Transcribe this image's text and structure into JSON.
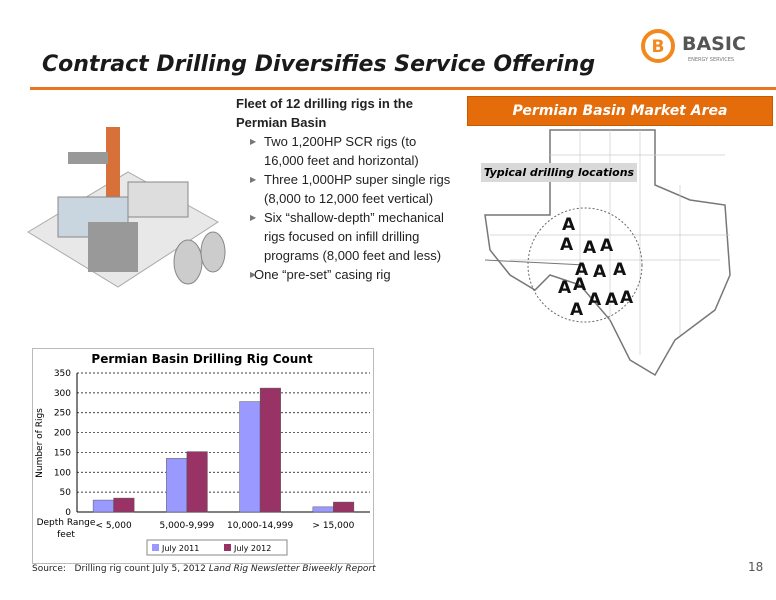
{
  "header": {
    "title": "Contract Drilling Diversifies Service Offering",
    "logo_letter": "B",
    "logo_name": "BASIC",
    "logo_tagline": "ENERGY SERVICES"
  },
  "fleet": {
    "heading": "Fleet of 12 drilling rigs in the Permian Basin",
    "items": [
      "Two 1,200HP  SCR rigs (to 16,000 feet and horizontal)",
      "Three 1,000HP super single rigs (8,000 to 12,000 feet vertical)",
      "Six “shallow-depth” mechanical rigs focused on infill drilling programs (8,000 feet and less)",
      "One “pre-set” casing rig"
    ]
  },
  "map": {
    "title": "Permian Basin Market Area",
    "label": "Typical drilling locations"
  },
  "chart_data": {
    "type": "bar",
    "title": "Permian Basin Drilling Rig Count",
    "y_label": "Number of Rigs",
    "x_label": "Depth Range feet",
    "categories": [
      "< 5,000",
      "5,000-9,999",
      "10,000-14,999",
      "> 15,000"
    ],
    "series": [
      {
        "name": "July 2011",
        "color": "#9999ff",
        "values": [
          30,
          135,
          278,
          13
        ]
      },
      {
        "name": "July 2012",
        "color": "#993366",
        "values": [
          35,
          152,
          312,
          25
        ]
      }
    ],
    "ylim": [
      0,
      350
    ],
    "yticks": [
      0,
      50,
      100,
      150,
      200,
      250,
      300,
      350
    ],
    "grid": true
  },
  "footer": {
    "source_label": "Source:",
    "source_text": "Drilling rig count July 5, 2012",
    "source_publication": "Land Rig Newsletter Biweekly Report",
    "page_number": "18"
  }
}
